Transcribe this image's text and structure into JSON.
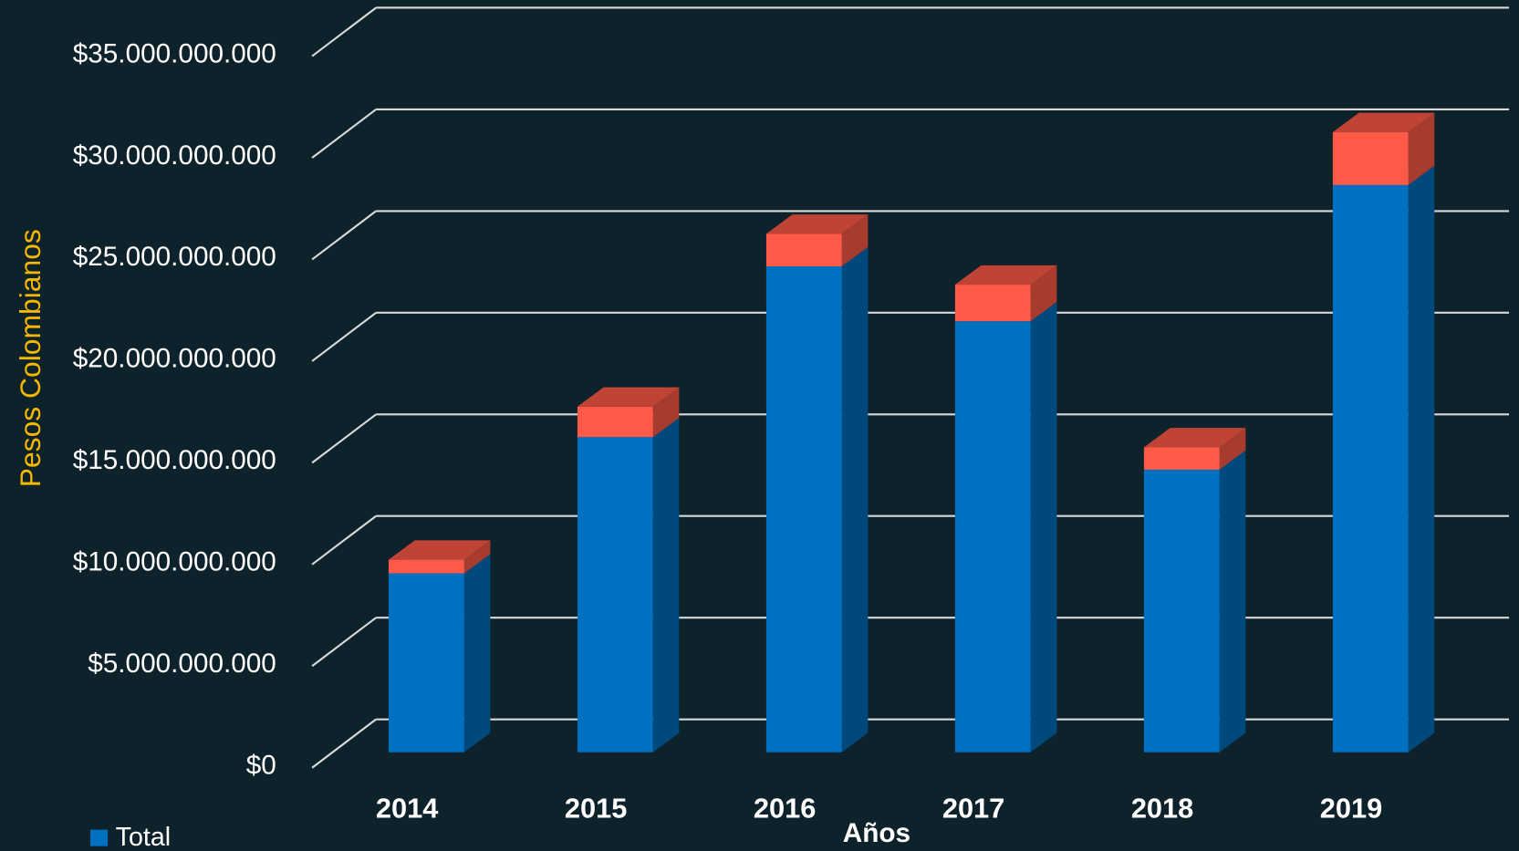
{
  "chart_data": {
    "type": "bar3d_stacked",
    "y_axis_label": "Pesos Colombianos",
    "x_axis_label": "Años",
    "categories": [
      "2014",
      "2015",
      "2016",
      "2017",
      "2018",
      "2019"
    ],
    "series": [
      {
        "name": "Total",
        "color": "#0070c0",
        "values": [
          8800000000,
          15500000000,
          23900000000,
          21200000000,
          13900000000,
          27900000000
        ]
      },
      {
        "color": "#ff5a47",
        "values": [
          670000000,
          1500000000,
          1600000000,
          1800000000,
          1100000000,
          2600000000
        ]
      }
    ],
    "ylim": [
      0,
      35000000000
    ],
    "yticks": [
      {
        "value": 0,
        "label": "$0"
      },
      {
        "value": 5000000000,
        "label": "$5.000.000.000"
      },
      {
        "value": 10000000000,
        "label": "$10.000.000.000"
      },
      {
        "value": 15000000000,
        "label": "$15.000.000.000"
      },
      {
        "value": 20000000000,
        "label": "$20.000.000.000"
      },
      {
        "value": 25000000000,
        "label": "$25.000.000.000"
      },
      {
        "value": 30000000000,
        "label": "$30.000.000.000"
      },
      {
        "value": 35000000000,
        "label": "$35.000.000.000"
      }
    ],
    "grid": true,
    "legend": "bottom-left"
  }
}
